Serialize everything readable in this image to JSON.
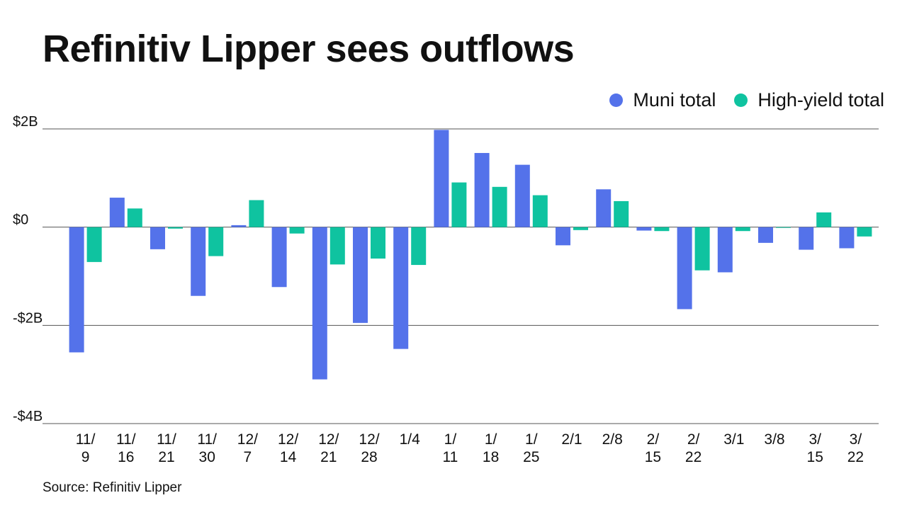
{
  "title": "Refinitiv Lipper sees outflows",
  "source": "Source: Refinitiv Lipper",
  "colors": {
    "muni": "#5472ea",
    "high_yield": "#0fc3a0",
    "grid": "#555555"
  },
  "chart_data": {
    "type": "bar",
    "title": "Refinitiv Lipper sees outflows",
    "xlabel": "",
    "ylabel": "",
    "ylim": [
      -4,
      2
    ],
    "yunit": "B",
    "yticks": [
      {
        "value": 2,
        "label": "$2B"
      },
      {
        "value": 0,
        "label": "$0"
      },
      {
        "value": -2,
        "label": "-$2B"
      },
      {
        "value": -4,
        "label": "-$4B"
      }
    ],
    "categories": [
      [
        "11/",
        "9"
      ],
      [
        "11/",
        "16"
      ],
      [
        "11/",
        "21"
      ],
      [
        "11/",
        "30"
      ],
      [
        "12/",
        "7"
      ],
      [
        "12/",
        "14"
      ],
      [
        "12/",
        "21"
      ],
      [
        "12/",
        "28"
      ],
      [
        "1/4"
      ],
      [
        "1/",
        "11"
      ],
      [
        "1/",
        "18"
      ],
      [
        "1/",
        "25"
      ],
      [
        "2/1"
      ],
      [
        "2/8"
      ],
      [
        "2/",
        "15"
      ],
      [
        "2/",
        "22"
      ],
      [
        "3/1"
      ],
      [
        "3/8"
      ],
      [
        "3/",
        "15"
      ],
      [
        "3/",
        "22"
      ]
    ],
    "series": [
      {
        "name": "Muni total",
        "color": "#5472ea",
        "values": [
          -2.55,
          0.6,
          -0.45,
          -1.4,
          0.04,
          -1.22,
          -3.1,
          -1.95,
          -2.48,
          1.98,
          1.51,
          1.27,
          -0.37,
          0.77,
          -0.07,
          -1.67,
          -0.92,
          -0.32,
          -0.46,
          -0.43
        ]
      },
      {
        "name": "High-yield total",
        "color": "#0fc3a0",
        "values": [
          -0.71,
          0.38,
          -0.03,
          -0.59,
          0.55,
          -0.13,
          -0.76,
          -0.64,
          -0.77,
          0.91,
          0.82,
          0.65,
          -0.06,
          0.53,
          -0.08,
          -0.88,
          -0.08,
          -0.01,
          0.3,
          -0.19
        ]
      }
    ],
    "legend_position": "top-right",
    "grid": true
  }
}
